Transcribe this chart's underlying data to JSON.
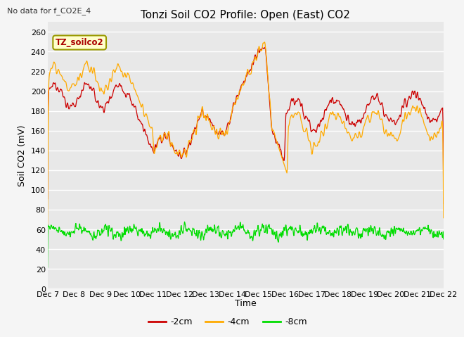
{
  "title": "Tonzi Soil CO2 Profile: Open (East) CO2",
  "subtitle": "No data for f_CO2E_4",
  "ylabel": "Soil CO2 (mV)",
  "xlabel": "Time",
  "legend_label": "TZ_soilco2",
  "ylim": [
    0,
    270
  ],
  "yticks": [
    0,
    20,
    40,
    60,
    80,
    100,
    120,
    140,
    160,
    180,
    200,
    220,
    240,
    260
  ],
  "xtick_labels": [
    "Dec 7",
    "Dec 8",
    "Dec 9",
    "Dec 10",
    "Dec 11",
    "Dec 12",
    "Dec 13",
    "Dec 14",
    "Dec 15",
    "Dec 16",
    "Dec 17",
    "Dec 18",
    "Dec 19",
    "Dec 20",
    "Dec 21",
    "Dec 22"
  ],
  "line_colors": {
    "2cm": "#cc0000",
    "4cm": "#ffaa00",
    "8cm": "#00dd00"
  },
  "line_labels": {
    "2cm": "-2cm",
    "4cm": "-4cm",
    "8cm": "-8cm"
  },
  "plot_bg_color": "#e8e8e8",
  "fig_bg_color": "#f5f5f5",
  "grid_color": "#ffffff",
  "title_fontsize": 11,
  "axis_fontsize": 9,
  "tick_fontsize": 8,
  "n_days": 15,
  "n_per_day": 96
}
